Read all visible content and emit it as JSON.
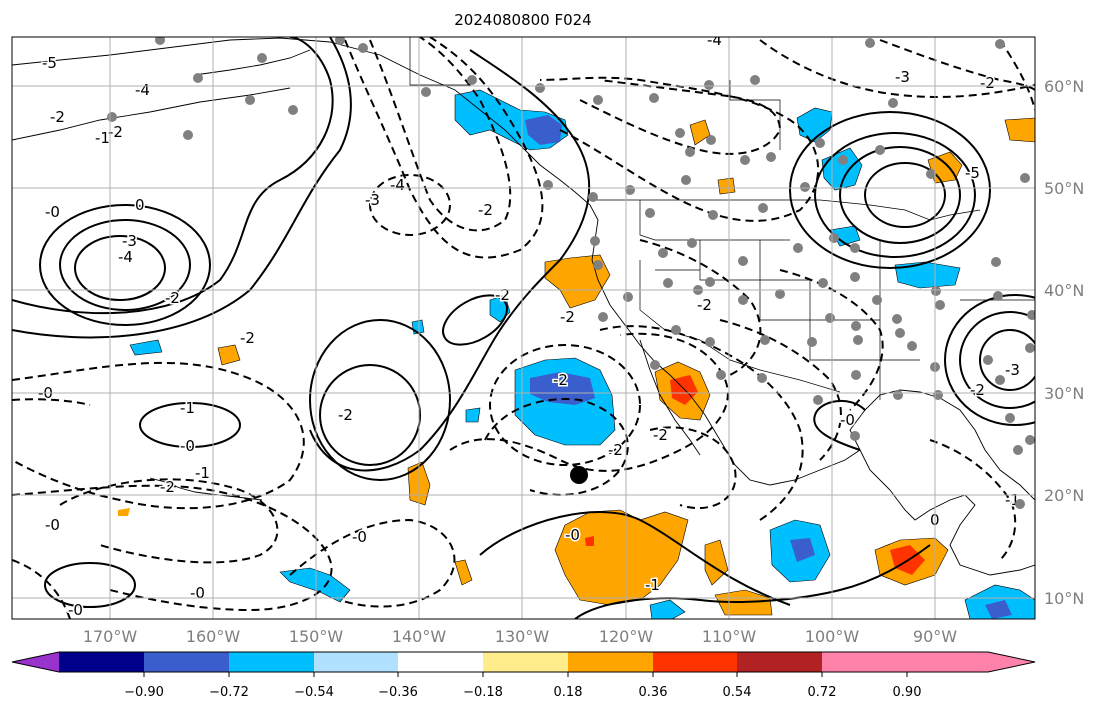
{
  "figure": {
    "title": "2024080800 F024",
    "domain": "weather-map"
  },
  "map": {
    "lon_ticks": [
      "170°W",
      "160°W",
      "150°W",
      "140°W",
      "130°W",
      "120°W",
      "110°W",
      "100°W",
      "90°W"
    ],
    "lat_ticks": [
      "60°N",
      "50°N",
      "40°N",
      "30°N",
      "20°N",
      "10°N"
    ],
    "contour_labels": [
      "-5",
      "-4",
      "-2",
      "-1",
      "-2",
      "-0",
      "0",
      "-3",
      "-4",
      "-2",
      "-2",
      "-0",
      "-1",
      "-0",
      "-2",
      "-1",
      "-0",
      "-0",
      "-0",
      "-2",
      "-3",
      "-4",
      "-2",
      "-2",
      "-2",
      "-2",
      "-0",
      "-1",
      "-2",
      "-4",
      "-3",
      "-2",
      "-5",
      "-3",
      "-2",
      "-0",
      "-1",
      "0",
      "-0",
      "-2",
      "-2"
    ],
    "marker_label": "analysis point"
  },
  "colorbar": {
    "ticks": [
      "−0.90",
      "−0.72",
      "−0.54",
      "−0.36",
      "−0.18",
      "0.18",
      "0.36",
      "0.54",
      "0.72",
      "0.90"
    ],
    "colors": [
      "#9a32cd",
      "#00008b",
      "#3a5fcd",
      "#00bfff",
      "#b0e2ff",
      "#ffffff",
      "#ffec8b",
      "#ffa500",
      "#ff3300",
      "#b22222",
      "#ff82ab"
    ]
  }
}
